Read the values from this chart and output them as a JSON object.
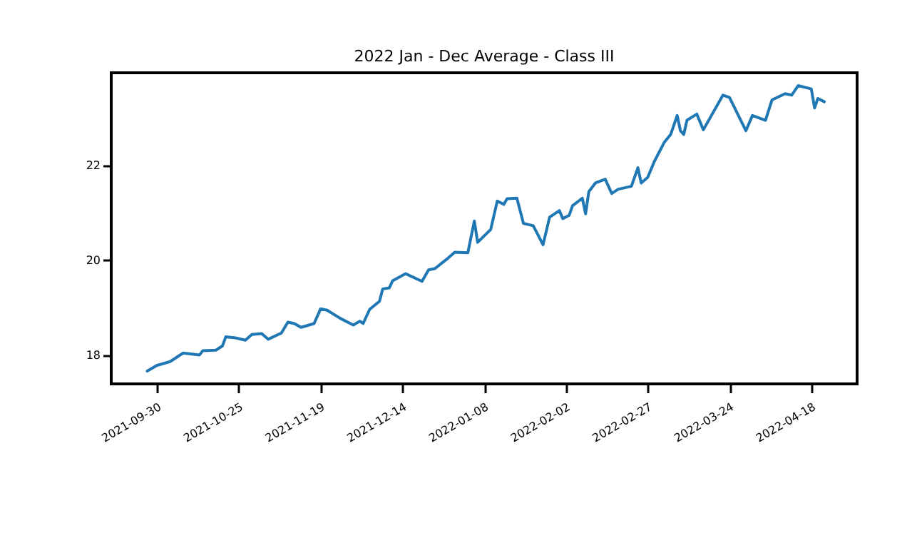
{
  "chart_data": {
    "type": "line",
    "title": "2022 Jan - Dec Average - Class III",
    "x": [
      "2021-09-27",
      "2021-09-30",
      "2021-10-04",
      "2021-10-08",
      "2021-10-13",
      "2021-10-14",
      "2021-10-18",
      "2021-10-20",
      "2021-10-21",
      "2021-10-24",
      "2021-10-27",
      "2021-10-29",
      "2021-11-01",
      "2021-11-03",
      "2021-11-07",
      "2021-11-09",
      "2021-11-11",
      "2021-11-13",
      "2021-11-17",
      "2021-11-19",
      "2021-11-21",
      "2021-11-25",
      "2021-11-29",
      "2021-12-01",
      "2021-12-02",
      "2021-12-04",
      "2021-12-07",
      "2021-12-08",
      "2021-12-10",
      "2021-12-11",
      "2021-12-15",
      "2021-12-20",
      "2021-12-22",
      "2021-12-24",
      "2021-12-28",
      "2021-12-30",
      "2022-01-03",
      "2022-01-05",
      "2022-01-06",
      "2022-01-10",
      "2022-01-12",
      "2022-01-14",
      "2022-01-15",
      "2022-01-18",
      "2022-01-20",
      "2022-01-23",
      "2022-01-26",
      "2022-01-28",
      "2022-01-31",
      "2022-02-01",
      "2022-02-03",
      "2022-02-04",
      "2022-02-07",
      "2022-02-08",
      "2022-02-09",
      "2022-02-11",
      "2022-02-14",
      "2022-02-16",
      "2022-02-18",
      "2022-02-22",
      "2022-02-24",
      "2022-02-25",
      "2022-02-27",
      "2022-03-01",
      "2022-03-04",
      "2022-03-06",
      "2022-03-08",
      "2022-03-09",
      "2022-03-10",
      "2022-03-11",
      "2022-03-14",
      "2022-03-16",
      "2022-03-22",
      "2022-03-24",
      "2022-03-29",
      "2022-03-31",
      "2022-04-04",
      "2022-04-06",
      "2022-04-10",
      "2022-04-12",
      "2022-04-14",
      "2022-04-18",
      "2022-04-19",
      "2022-04-20",
      "2022-04-22"
    ],
    "series": [
      {
        "color": "#1f77b4",
        "values": [
          17.67,
          17.79,
          17.87,
          18.05,
          18.01,
          18.1,
          18.11,
          18.2,
          18.39,
          18.37,
          18.32,
          18.44,
          18.46,
          18.34,
          18.47,
          18.7,
          18.67,
          18.59,
          18.67,
          18.98,
          18.95,
          18.78,
          18.64,
          18.72,
          18.67,
          18.97,
          19.14,
          19.4,
          19.42,
          19.57,
          19.72,
          19.56,
          19.8,
          19.83,
          20.05,
          20.17,
          20.16,
          20.83,
          20.38,
          20.65,
          21.25,
          21.18,
          21.3,
          21.31,
          20.78,
          20.73,
          20.33,
          20.91,
          21.05,
          20.88,
          20.95,
          21.15,
          21.31,
          20.98,
          21.45,
          21.63,
          21.71,
          21.41,
          21.5,
          21.56,
          21.95,
          21.63,
          21.75,
          22.08,
          22.48,
          22.65,
          23.05,
          22.73,
          22.65,
          22.95,
          23.08,
          22.75,
          23.48,
          23.43,
          22.73,
          23.05,
          22.95,
          23.38,
          23.51,
          23.48,
          23.68,
          23.61,
          23.21,
          23.41,
          23.34
        ]
      }
    ],
    "xlim": [
      "2021-09-16",
      "2022-05-02"
    ],
    "xticks": [
      "2021-09-30",
      "2021-10-25",
      "2021-11-19",
      "2021-12-14",
      "2022-01-08",
      "2022-02-02",
      "2022-02-27",
      "2022-03-24",
      "2022-04-18"
    ],
    "ylim": [
      17.4,
      23.95
    ],
    "yticks": [
      18,
      20,
      22
    ],
    "grid": false,
    "marker": "none",
    "line_style": "solid"
  }
}
